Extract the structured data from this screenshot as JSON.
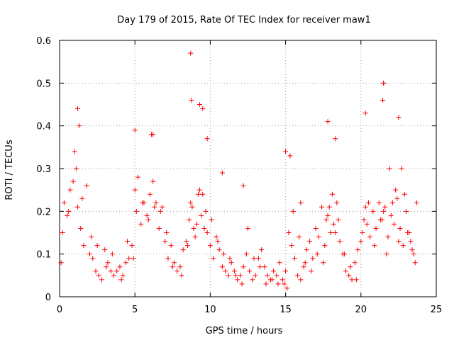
{
  "chart_data": {
    "type": "scatter",
    "title": "Day 179 of 2015, Rate Of TEC Index for receiver maw1",
    "xlabel": "GPS time / hours",
    "ylabel": "ROTI / TECUs",
    "xlim": [
      0,
      25
    ],
    "ylim": [
      0,
      0.6
    ],
    "xticks": [
      0,
      5,
      10,
      15,
      20,
      25
    ],
    "yticks": [
      0,
      0.1,
      0.2,
      0.3,
      0.4,
      0.5,
      0.6
    ],
    "xtick_labels": [
      "0",
      "5",
      "10",
      "15",
      "20",
      "25"
    ],
    "ytick_labels": [
      "0",
      "0.1",
      "0.2",
      "0.3",
      "0.4",
      "0.5",
      "0.6"
    ],
    "grid": true,
    "grid_style": "dotted",
    "marker": "plus",
    "color": "#ff0000",
    "series": [
      {
        "x": [
          0.1,
          0.3,
          0.5,
          0.7,
          0.9,
          1.1,
          1.2,
          1.4,
          1.6,
          1.8,
          2.0,
          2.2,
          2.4,
          2.6,
          2.8,
          3.0,
          3.2,
          3.4,
          3.6,
          3.8,
          4.0,
          4.2,
          4.4,
          4.6,
          4.8,
          5.0,
          5.2,
          5.4,
          5.6,
          5.8,
          6.0,
          6.2,
          6.4,
          6.6,
          6.8,
          7.0,
          7.2,
          7.4,
          7.6,
          7.8,
          8.0,
          8.2,
          8.4,
          8.6,
          8.8,
          9.0,
          9.2,
          9.4,
          9.6,
          9.8,
          10.0,
          10.2,
          10.4,
          10.6,
          10.8,
          11.0,
          11.2,
          11.4,
          11.6,
          11.8,
          12.0,
          12.2,
          12.4,
          12.6,
          12.8,
          13.0,
          13.2,
          13.4,
          13.6,
          13.8,
          14.0,
          14.2,
          14.4,
          14.6,
          14.8,
          15.0,
          15.2,
          15.4,
          15.6,
          15.8,
          16.0,
          16.2,
          16.4,
          16.6,
          16.8,
          17.0,
          17.2,
          17.4,
          17.6,
          17.8,
          18.0,
          18.2,
          18.4,
          18.6,
          18.8,
          19.0,
          19.2,
          19.4,
          19.6,
          19.8,
          20.0,
          20.2,
          20.4,
          20.6,
          20.8,
          21.0,
          21.2,
          21.4,
          21.6,
          21.8,
          22.0,
          22.2,
          22.4,
          22.6,
          22.8,
          23.0,
          23.2,
          23.4,
          23.6,
          0.2,
          0.6,
          1.0,
          1.3,
          1.5,
          2.1,
          2.5,
          3.1,
          3.5,
          4.1,
          4.5,
          4.9,
          5.1,
          5.5,
          5.9,
          6.3,
          6.7,
          7.1,
          7.5,
          8.1,
          8.5,
          8.7,
          8.9,
          9.1,
          9.3,
          9.5,
          9.7,
          10.1,
          10.5,
          10.9,
          11.3,
          11.7,
          12.1,
          12.5,
          12.9,
          13.3,
          13.7,
          14.1,
          14.5,
          14.9,
          15.1,
          15.3,
          15.5,
          15.9,
          16.3,
          16.7,
          17.1,
          17.5,
          17.7,
          17.9,
          18.1,
          18.3,
          18.5,
          18.9,
          19.3,
          19.7,
          20.1,
          20.3,
          20.5,
          20.9,
          21.3,
          21.5,
          21.7,
          21.9,
          22.1,
          22.3,
          22.5,
          22.7,
          22.9,
          23.1,
          23.3,
          23.5,
          23.7,
          8.7,
          8.75,
          9.3,
          9.5,
          6.2,
          1.2,
          21.45,
          21.5,
          21.5,
          22.5,
          17.8,
          20.3,
          5.0,
          6.1,
          9.8,
          15.0,
          18.3,
          12.2,
          16.0,
          10.8
        ],
        "y": [
          0.08,
          0.22,
          0.19,
          0.25,
          0.27,
          0.3,
          0.21,
          0.16,
          0.12,
          0.26,
          0.1,
          0.09,
          0.06,
          0.05,
          0.04,
          0.11,
          0.08,
          0.06,
          0.05,
          0.06,
          0.07,
          0.05,
          0.08,
          0.09,
          0.12,
          0.25,
          0.28,
          0.17,
          0.22,
          0.19,
          0.24,
          0.27,
          0.22,
          0.16,
          0.21,
          0.13,
          0.09,
          0.12,
          0.08,
          0.06,
          0.07,
          0.11,
          0.13,
          0.18,
          0.21,
          0.14,
          0.24,
          0.19,
          0.16,
          0.15,
          0.12,
          0.09,
          0.14,
          0.11,
          0.07,
          0.06,
          0.05,
          0.08,
          0.06,
          0.04,
          0.05,
          0.07,
          0.1,
          0.06,
          0.04,
          0.05,
          0.09,
          0.11,
          0.07,
          0.05,
          0.04,
          0.06,
          0.05,
          0.08,
          0.04,
          0.06,
          0.15,
          0.12,
          0.09,
          0.05,
          0.04,
          0.07,
          0.11,
          0.13,
          0.09,
          0.16,
          0.14,
          0.21,
          0.12,
          0.19,
          0.15,
          0.17,
          0.22,
          0.13,
          0.1,
          0.06,
          0.05,
          0.04,
          0.08,
          0.11,
          0.13,
          0.18,
          0.17,
          0.14,
          0.2,
          0.16,
          0.22,
          0.18,
          0.21,
          0.14,
          0.19,
          0.17,
          0.23,
          0.16,
          0.12,
          0.2,
          0.15,
          0.11,
          0.08,
          0.15,
          0.2,
          0.34,
          0.4,
          0.23,
          0.14,
          0.12,
          0.07,
          0.1,
          0.04,
          0.13,
          0.09,
          0.2,
          0.22,
          0.18,
          0.21,
          0.2,
          0.15,
          0.07,
          0.05,
          0.12,
          0.22,
          0.16,
          0.17,
          0.25,
          0.24,
          0.2,
          0.18,
          0.13,
          0.1,
          0.09,
          0.05,
          0.03,
          0.16,
          0.09,
          0.07,
          0.03,
          0.04,
          0.03,
          0.03,
          0.02,
          0.33,
          0.2,
          0.14,
          0.08,
          0.06,
          0.1,
          0.08,
          0.18,
          0.21,
          0.24,
          0.15,
          0.18,
          0.1,
          0.07,
          0.04,
          0.15,
          0.21,
          0.22,
          0.12,
          0.18,
          0.2,
          0.1,
          0.3,
          0.22,
          0.25,
          0.13,
          0.3,
          0.24,
          0.15,
          0.13,
          0.1,
          0.22,
          0.57,
          0.46,
          0.45,
          0.44,
          0.38,
          0.44,
          0.46,
          0.5,
          0.5,
          0.42,
          0.41,
          0.43,
          0.39,
          0.38,
          0.37,
          0.34,
          0.37,
          0.26,
          0.22,
          0.29
        ]
      }
    ]
  }
}
